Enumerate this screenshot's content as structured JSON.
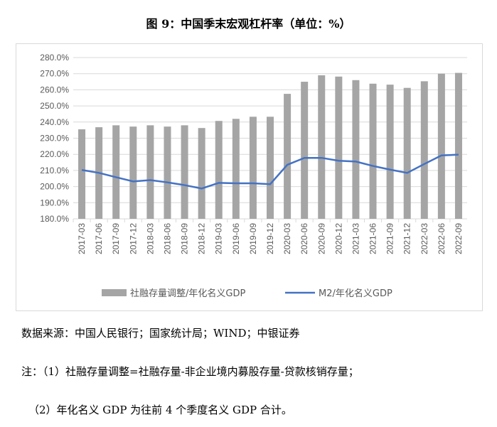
{
  "title": "图 9：中国季末宏观杠杆率（单位：%）",
  "chart_data": {
    "type": "bar+line",
    "categories": [
      "2017-03",
      "2017-06",
      "2017-09",
      "2017-12",
      "2018-03",
      "2018-06",
      "2018-09",
      "2018-12",
      "2019-03",
      "2019-06",
      "2019-09",
      "2019-12",
      "2020-03",
      "2020-06",
      "2020-09",
      "2020-12",
      "2021-03",
      "2021-06",
      "2021-09",
      "2021-12",
      "2022-03",
      "2022-06",
      "2022-09"
    ],
    "series": [
      {
        "name": "社融存量调整/年化名义GDP",
        "type": "bar",
        "color": "#a5a5a5",
        "values": [
          235.5,
          236.8,
          238,
          237.2,
          238,
          237.2,
          238,
          236.3,
          240.7,
          242,
          243.3,
          243.3,
          257.5,
          265,
          269,
          268.2,
          266,
          263.8,
          263.2,
          261.2,
          265.3,
          270,
          270.5
        ]
      },
      {
        "name": "M2/年化名义GDP",
        "type": "line",
        "color": "#4472c4",
        "values": [
          210.3,
          208.5,
          205.8,
          203.2,
          204,
          202.6,
          200.9,
          198.8,
          202.3,
          202,
          202,
          201.5,
          213.5,
          217.8,
          217.8,
          216,
          215.5,
          212.8,
          210.5,
          208.5,
          214,
          219.3,
          219.8
        ]
      }
    ],
    "ylim": [
      180,
      280
    ],
    "yticks": [
      "180.0%",
      "190.0%",
      "200.0%",
      "210.0%",
      "220.0%",
      "230.0%",
      "240.0%",
      "250.0%",
      "260.0%",
      "270.0%",
      "280.0%"
    ],
    "grid": true,
    "legend": "bottom"
  },
  "notes": {
    "source": "数据来源：中国人民银行；国家统计局；WIND；中银证券",
    "note1": "注：（1）社融存量调整=社融存量-非企业境内募股存量-贷款核销存量；",
    "note2": "（2）年化名义 GDP 为往前 4 个季度名义 GDP 合计。"
  }
}
